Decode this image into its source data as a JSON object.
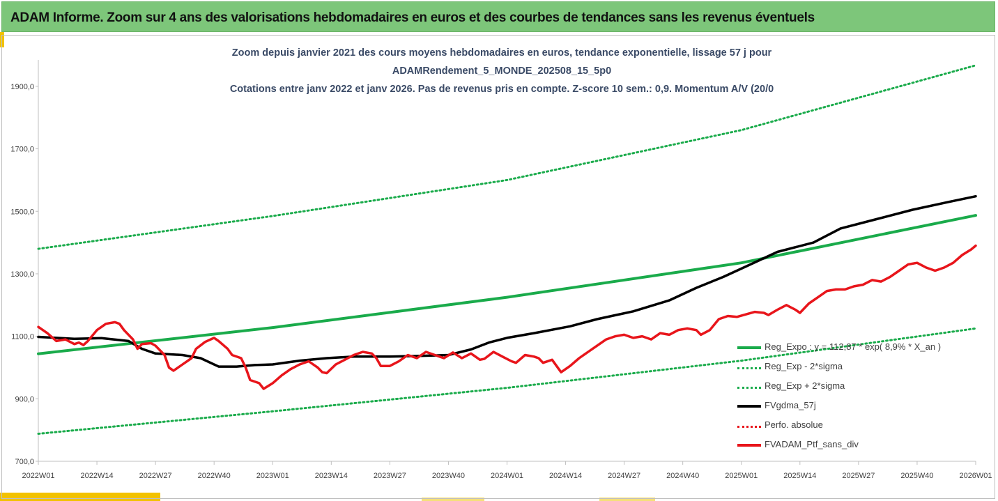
{
  "header": {
    "title": "ADAM Informe. Zoom sur 4 ans des valorisations hebdomadaires en euros et des courbes de tendances sans les revenus éventuels"
  },
  "colors": {
    "header_bg": "#7dc67a",
    "trend_green": "#1aab4b",
    "smooth_black": "#000000",
    "portfolio_red": "#e8151b",
    "accent_yellow": "#f2c200"
  },
  "chart_data": {
    "type": "line",
    "title_lines": [
      "Zoom depuis janvier 2021 des cours moyens hebdomadaires  en euros, tendance exponentielle, lissage 57 j pour",
      "ADAMRendement_5_MONDE_202508_15_5p0",
      "Cotations entre janv 2022 et janv 2026. Pas de revenus pris en compte. Z-score 10 sem.: 0,9. Momentum A/V (20/0"
    ],
    "x_tick_labels": [
      "2022W01",
      "2022W14",
      "2022W27",
      "2022W40",
      "2023W01",
      "2023W14",
      "2023W27",
      "2023W40",
      "2024W01",
      "2024W14",
      "2024W27",
      "2024W40",
      "2025W01",
      "2025W14",
      "2025W27",
      "2025W40",
      "2026W01"
    ],
    "y_tick_labels": [
      "700,0",
      "900,0",
      "1100,0",
      "1300,0",
      "1500,0",
      "1700,0",
      "1900,0"
    ],
    "ylim": [
      700,
      1980
    ],
    "grid": false,
    "legend_position": "bottom-right",
    "x_unit": "weeks since 2022W01 (13 weeks per tick)",
    "x_max": 208,
    "series": [
      {
        "name": "Reg_Expo : y = 112,87 * exp( 8,9% *  X_an )",
        "style": "solid-green",
        "points": [
          [
            0,
            1044
          ],
          [
            52,
            1128
          ],
          [
            104,
            1225
          ],
          [
            156,
            1335
          ],
          [
            208,
            1487
          ]
        ]
      },
      {
        "name": "Reg_Exp - 2*sigma",
        "style": "dotted-green",
        "points": [
          [
            0,
            788
          ],
          [
            52,
            860
          ],
          [
            104,
            935
          ],
          [
            156,
            1022
          ],
          [
            208,
            1125
          ]
        ]
      },
      {
        "name": "Reg_Exp + 2*sigma",
        "style": "dotted-green",
        "points": [
          [
            0,
            1380
          ],
          [
            52,
            1485
          ],
          [
            104,
            1600
          ],
          [
            156,
            1760
          ],
          [
            208,
            1967
          ]
        ]
      },
      {
        "name": "FVgdma_57j",
        "style": "solid-black",
        "points": [
          [
            0,
            1098
          ],
          [
            8,
            1092
          ],
          [
            14,
            1094
          ],
          [
            20,
            1085
          ],
          [
            23,
            1060
          ],
          [
            26,
            1045
          ],
          [
            32,
            1040
          ],
          [
            36,
            1030
          ],
          [
            40,
            1003
          ],
          [
            44,
            1003
          ],
          [
            48,
            1008
          ],
          [
            52,
            1010
          ],
          [
            58,
            1022
          ],
          [
            64,
            1030
          ],
          [
            70,
            1035
          ],
          [
            78,
            1035
          ],
          [
            84,
            1037
          ],
          [
            91,
            1040
          ],
          [
            96,
            1058
          ],
          [
            100,
            1080
          ],
          [
            104,
            1095
          ],
          [
            110,
            1110
          ],
          [
            118,
            1132
          ],
          [
            124,
            1155
          ],
          [
            132,
            1180
          ],
          [
            140,
            1215
          ],
          [
            146,
            1255
          ],
          [
            152,
            1290
          ],
          [
            158,
            1330
          ],
          [
            164,
            1370
          ],
          [
            172,
            1400
          ],
          [
            178,
            1445
          ],
          [
            186,
            1475
          ],
          [
            194,
            1505
          ],
          [
            202,
            1530
          ],
          [
            208,
            1548
          ]
        ]
      },
      {
        "name": "Perfo. absolue",
        "style": "dotted-red",
        "points": []
      },
      {
        "name": "FVADAM_Ptf_sans_div",
        "style": "solid-red",
        "points": [
          [
            0,
            1130
          ],
          [
            2,
            1110
          ],
          [
            4,
            1085
          ],
          [
            6,
            1090
          ],
          [
            8,
            1075
          ],
          [
            9,
            1080
          ],
          [
            10,
            1072
          ],
          [
            11,
            1085
          ],
          [
            13,
            1120
          ],
          [
            15,
            1140
          ],
          [
            17,
            1145
          ],
          [
            18,
            1140
          ],
          [
            19,
            1120
          ],
          [
            21,
            1090
          ],
          [
            22,
            1060
          ],
          [
            23,
            1075
          ],
          [
            25,
            1078
          ],
          [
            26,
            1070
          ],
          [
            28,
            1040
          ],
          [
            29,
            1000
          ],
          [
            30,
            990
          ],
          [
            32,
            1010
          ],
          [
            34,
            1030
          ],
          [
            35,
            1060
          ],
          [
            37,
            1082
          ],
          [
            39,
            1095
          ],
          [
            40,
            1085
          ],
          [
            42,
            1060
          ],
          [
            43,
            1040
          ],
          [
            45,
            1030
          ],
          [
            46,
            1000
          ],
          [
            47,
            960
          ],
          [
            49,
            950
          ],
          [
            50,
            932
          ],
          [
            52,
            950
          ],
          [
            54,
            975
          ],
          [
            56,
            995
          ],
          [
            58,
            1010
          ],
          [
            60,
            1020
          ],
          [
            61,
            1010
          ],
          [
            62,
            1000
          ],
          [
            63,
            985
          ],
          [
            64,
            982
          ],
          [
            66,
            1010
          ],
          [
            68,
            1025
          ],
          [
            70,
            1040
          ],
          [
            72,
            1050
          ],
          [
            74,
            1045
          ],
          [
            75,
            1030
          ],
          [
            76,
            1005
          ],
          [
            78,
            1005
          ],
          [
            80,
            1020
          ],
          [
            82,
            1040
          ],
          [
            84,
            1030
          ],
          [
            86,
            1050
          ],
          [
            88,
            1040
          ],
          [
            90,
            1030
          ],
          [
            92,
            1048
          ],
          [
            94,
            1030
          ],
          [
            96,
            1045
          ],
          [
            98,
            1025
          ],
          [
            99,
            1028
          ],
          [
            101,
            1050
          ],
          [
            103,
            1035
          ],
          [
            105,
            1020
          ],
          [
            106,
            1015
          ],
          [
            108,
            1040
          ],
          [
            110,
            1035
          ],
          [
            111,
            1030
          ],
          [
            112,
            1015
          ],
          [
            114,
            1025
          ],
          [
            115,
            1005
          ],
          [
            116,
            985
          ],
          [
            118,
            1005
          ],
          [
            120,
            1030
          ],
          [
            122,
            1050
          ],
          [
            124,
            1070
          ],
          [
            126,
            1090
          ],
          [
            128,
            1100
          ],
          [
            130,
            1105
          ],
          [
            132,
            1095
          ],
          [
            134,
            1100
          ],
          [
            136,
            1090
          ],
          [
            138,
            1110
          ],
          [
            140,
            1105
          ],
          [
            142,
            1120
          ],
          [
            144,
            1125
          ],
          [
            146,
            1120
          ],
          [
            147,
            1105
          ],
          [
            149,
            1120
          ],
          [
            151,
            1155
          ],
          [
            153,
            1165
          ],
          [
            155,
            1162
          ],
          [
            157,
            1170
          ],
          [
            159,
            1178
          ],
          [
            161,
            1175
          ],
          [
            162,
            1168
          ],
          [
            164,
            1185
          ],
          [
            166,
            1200
          ],
          [
            168,
            1185
          ],
          [
            169,
            1175
          ],
          [
            171,
            1205
          ],
          [
            173,
            1225
          ],
          [
            175,
            1245
          ],
          [
            177,
            1250
          ],
          [
            179,
            1250
          ],
          [
            181,
            1260
          ],
          [
            183,
            1265
          ],
          [
            185,
            1280
          ],
          [
            187,
            1275
          ],
          [
            189,
            1290
          ],
          [
            191,
            1310
          ],
          [
            193,
            1330
          ],
          [
            195,
            1335
          ],
          [
            197,
            1320
          ],
          [
            199,
            1310
          ],
          [
            201,
            1320
          ],
          [
            203,
            1335
          ],
          [
            205,
            1360
          ],
          [
            207,
            1378
          ],
          [
            208,
            1390
          ]
        ]
      }
    ]
  },
  "legend": {
    "items": [
      {
        "label": "Reg_Expo : y = 112,87 * exp( 8,9% *  X_an )"
      },
      {
        "label": "Reg_Exp - 2*sigma"
      },
      {
        "label": "Reg_Exp + 2*sigma"
      },
      {
        "label": "FVgdma_57j"
      },
      {
        "label": "Perfo. absolue"
      },
      {
        "label": "FVADAM_Ptf_sans_div"
      }
    ]
  }
}
